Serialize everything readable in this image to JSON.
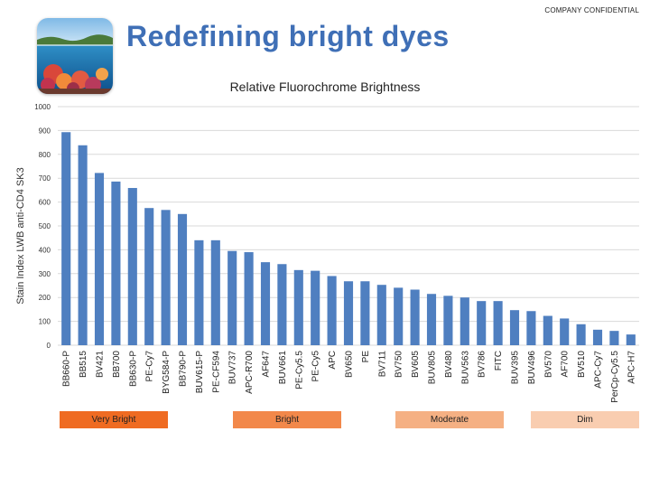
{
  "header": {
    "confidential": "COMPANY CONFIDENTIAL",
    "title": "Redefining bright dyes"
  },
  "colors": {
    "bar": "#4f7fc0",
    "title": "#3f6fb6",
    "very_bright": "#ef6b22",
    "bright": "#f2884a",
    "moderate": "#f5b083",
    "dim": "#f9cdb0"
  },
  "chart_data": {
    "type": "bar",
    "title": "Relative Fluorochrome Brightness",
    "ylabel": "Stain Index LWB anti-CD4 SK3",
    "xlabel": "",
    "ylim": [
      0,
      1000
    ],
    "yticks": [
      0,
      100,
      200,
      300,
      400,
      500,
      600,
      700,
      800,
      900,
      1000
    ],
    "categories": [
      "BB660-P",
      "BB515",
      "BV421",
      "BB700",
      "BB630-P",
      "PE-Cy7",
      "BYG584-P",
      "BB790-P",
      "BUV615-P",
      "PE-CF594",
      "BUV737",
      "APC-R700",
      "AF647",
      "BUV661",
      "PE-Cy5.5",
      "PE-Cy5",
      "APC",
      "BV650",
      "PE",
      "BV711",
      "BV750",
      "BV605",
      "BUV805",
      "BV480",
      "BUV563",
      "BV786",
      "FITC",
      "BUV395",
      "BUV496",
      "BV570",
      "AF700",
      "BV510",
      "APC-Cy7",
      "PerCp-Cy5.5",
      "APC-H7"
    ],
    "values": [
      893,
      838,
      722,
      686,
      659,
      575,
      567,
      550,
      440,
      440,
      395,
      390,
      348,
      340,
      315,
      312,
      290,
      268,
      268,
      253,
      241,
      233,
      215,
      207,
      200,
      185,
      185,
      147,
      143,
      123,
      112,
      88,
      65,
      60,
      45
    ],
    "grid": true
  },
  "legend": {
    "very_bright": "Very Bright",
    "bright": "Bright",
    "moderate": "Moderate",
    "dim": "Dim"
  }
}
